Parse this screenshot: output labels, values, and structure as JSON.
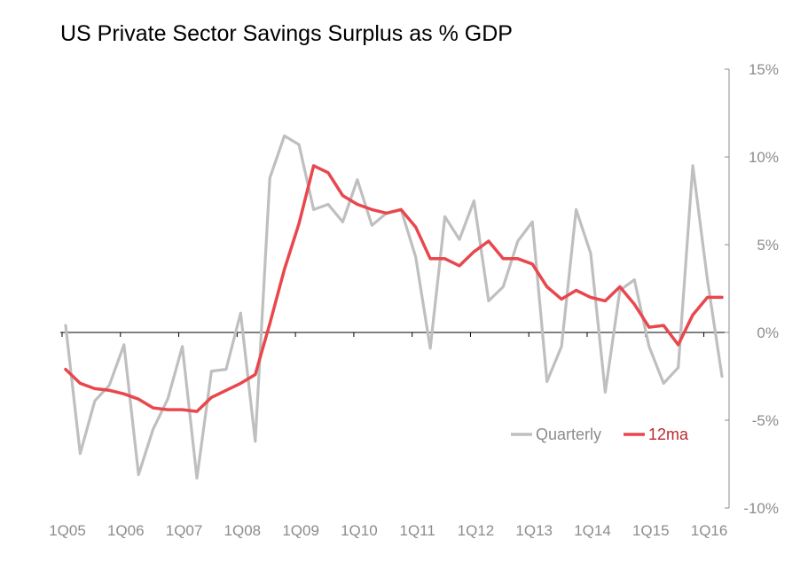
{
  "chart_data": {
    "type": "line",
    "title": "US Private Sector Savings Surplus as % GDP",
    "x_tick_labels": [
      "1Q05",
      "1Q06",
      "1Q07",
      "1Q08",
      "1Q09",
      "1Q10",
      "1Q11",
      "1Q12",
      "1Q13",
      "1Q14",
      "1Q15",
      "1Q16"
    ],
    "y_tick_labels": [
      "15%",
      "10%",
      "5%",
      "0%",
      "-5%",
      "-10%"
    ],
    "y_ticks": [
      15,
      10,
      5,
      0,
      -5,
      -10
    ],
    "ylim": [
      -10,
      15
    ],
    "x_start": "1Q05",
    "x_end": "2Q16",
    "y_axis_side": "right",
    "grid": false,
    "legend_placement": "bottom-right",
    "x": [
      "1Q05",
      "2Q05",
      "3Q05",
      "4Q05",
      "1Q06",
      "2Q06",
      "3Q06",
      "4Q06",
      "1Q07",
      "2Q07",
      "3Q07",
      "4Q07",
      "1Q08",
      "2Q08",
      "3Q08",
      "4Q08",
      "1Q09",
      "2Q09",
      "3Q09",
      "4Q09",
      "1Q10",
      "2Q10",
      "3Q10",
      "4Q10",
      "1Q11",
      "2Q11",
      "3Q11",
      "4Q11",
      "1Q12",
      "2Q12",
      "3Q12",
      "4Q12",
      "1Q13",
      "2Q13",
      "3Q13",
      "4Q13",
      "1Q14",
      "2Q14",
      "3Q14",
      "4Q14",
      "1Q15",
      "2Q15",
      "3Q15",
      "4Q15",
      "1Q16",
      "2Q16"
    ],
    "series": [
      {
        "name": "Quarterly",
        "color": "#bfbfbf",
        "values": [
          0.4,
          -6.9,
          -3.9,
          -3.0,
          -0.7,
          -8.1,
          -5.5,
          -3.8,
          -0.8,
          -8.3,
          -2.2,
          -2.1,
          1.1,
          -6.2,
          8.8,
          11.2,
          10.7,
          7.0,
          7.3,
          6.3,
          8.7,
          6.1,
          6.8,
          7.0,
          4.3,
          -0.9,
          6.6,
          5.3,
          7.5,
          1.8,
          2.6,
          5.2,
          6.3,
          -2.8,
          -0.8,
          7.0,
          4.5,
          -3.4,
          2.4,
          3.0,
          -0.8,
          -2.9,
          -2.0,
          9.5,
          3.0,
          -2.5
        ]
      },
      {
        "name": "12ma",
        "color": "#e8474d",
        "values": [
          -2.1,
          -2.9,
          -3.2,
          -3.3,
          -3.5,
          -3.8,
          -4.3,
          -4.4,
          -4.4,
          -4.5,
          -3.7,
          -3.3,
          -2.9,
          -2.4,
          0.5,
          3.6,
          6.2,
          9.5,
          9.1,
          7.8,
          7.3,
          7.0,
          6.8,
          7.0,
          6.0,
          4.2,
          4.2,
          3.8,
          4.6,
          5.2,
          4.2,
          4.2,
          3.9,
          2.6,
          1.9,
          2.4,
          2.0,
          1.8,
          2.6,
          1.6,
          0.3,
          0.4,
          -0.7,
          1.0,
          2.0,
          2.0
        ]
      }
    ]
  }
}
